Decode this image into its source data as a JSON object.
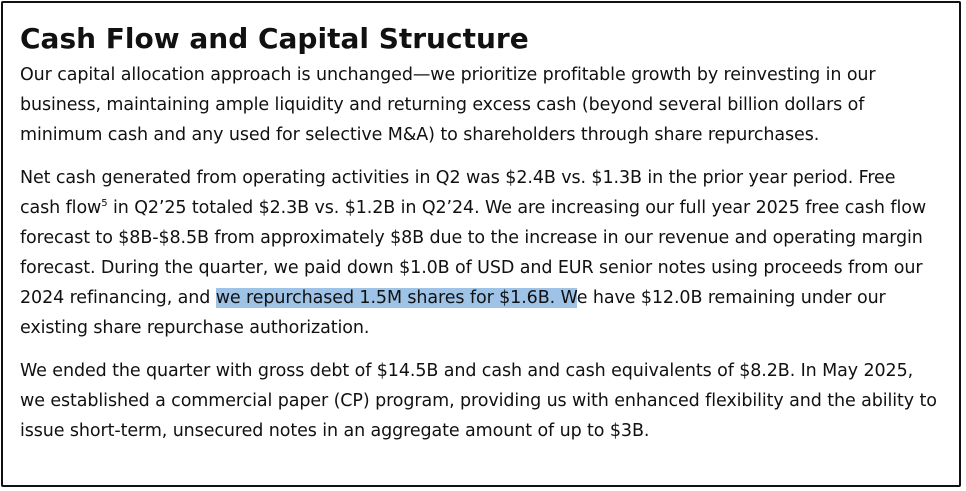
{
  "heading": "Cash Flow and Capital Structure",
  "paragraph1": "Our capital allocation approach is unchanged—we prioritize profitable growth by reinvesting in our business, maintaining ample liquidity and returning excess cash (beyond several billion dollars of minimum cash and any used for selective M&A) to shareholders through share repurchases.",
  "paragraph2": {
    "part1": "Net cash generated from operating activities in Q2 was $2.4B vs. $1.3B in the prior year period. Free cash flow",
    "footnote": "5",
    "part2": " in Q2’25 totaled $2.3B vs. $1.2B in Q2’24. We are increasing our full year 2025 free cash flow forecast to $8B-$8.5B from approximately $8B due to the increase in our revenue and operating margin forecast. During the quarter, we paid down $1.0B of USD and EUR senior notes using proceeds from our 2024 refinancing, and ",
    "highlighted": "we repurchased 1.5M shares for $1.6B. W",
    "part3": "e have $12.0B remaining under our existing share repurchase authorization."
  },
  "paragraph3": "We ended the quarter with gross debt of $14.5B and cash and cash equivalents of $8.2B. In May 2025, we established a commercial paper (CP) program, providing us with enhanced flexibility and the ability to issue short-term, unsecured notes in an aggregate amount of up to $3B.",
  "colors": {
    "highlight": "#9ec3e6",
    "text": "#111111",
    "border": "#111111"
  }
}
